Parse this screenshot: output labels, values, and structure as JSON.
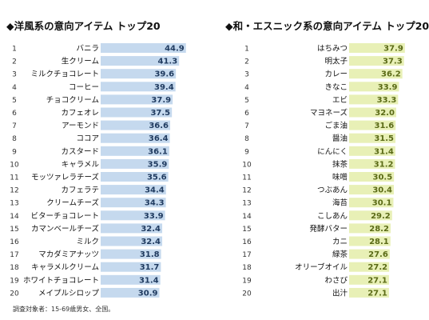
{
  "footnote": "調査対象者：15-69歳男女、全国。",
  "chart_data": [
    {
      "type": "bar",
      "orientation": "horizontal",
      "title": "◆洋風系の意向アイテム トップ20",
      "ranks": [
        "1",
        "2",
        "3",
        "4",
        "5",
        "6",
        "7",
        "8",
        "9",
        "10",
        "11",
        "12",
        "13",
        "14",
        "15",
        "16",
        "17",
        "18",
        "19",
        "20"
      ],
      "categories": [
        "バニラ",
        "生クリーム",
        "ミルクチョコレート",
        "コーヒー",
        "チョコクリーム",
        "カフェオレ",
        "アーモンド",
        "ココア",
        "カスタード",
        "キャラメル",
        "モッツァレラチーズ",
        "カフェラテ",
        "クリームチーズ",
        "ビターチョコレート",
        "カマンベールチーズ",
        "ミルク",
        "マカダミアナッツ",
        "キャラメルクリーム",
        "ホワイトチョコレート",
        "メイプルシロップ"
      ],
      "values": [
        "44.9",
        "41.3",
        "39.6",
        "39.4",
        "37.9",
        "37.5",
        "36.6",
        "36.4",
        "36.1",
        "35.9",
        "35.6",
        "34.4",
        "34.3",
        "33.9",
        "32.4",
        "32.4",
        "31.8",
        "31.7",
        "31.4",
        "30.9"
      ],
      "xlim": [
        0,
        45
      ],
      "bar_color": "#c5d9ee",
      "value_color": "#1f3a5f",
      "grid": false
    },
    {
      "type": "bar",
      "orientation": "horizontal",
      "title": "◆和・エスニック系の意向アイテム トップ20",
      "ranks": [
        "1",
        "2",
        "3",
        "4",
        "5",
        "6",
        "7",
        "8",
        "9",
        "10",
        "11",
        "12",
        "13",
        "14",
        "15",
        "16",
        "17",
        "18",
        "19",
        "20"
      ],
      "categories": [
        "はちみつ",
        "明太子",
        "カレー",
        "きなこ",
        "エビ",
        "マヨネーズ",
        "ごま油",
        "醤油",
        "にんにく",
        "抹茶",
        "味噌",
        "つぶあん",
        "海苔",
        "こしあん",
        "発酵バター",
        "カニ",
        "緑茶",
        "オリーブオイル",
        "わさび",
        "出汁"
      ],
      "values": [
        "37.9",
        "37.3",
        "36.2",
        "33.9",
        "33.3",
        "32.0",
        "31.6",
        "31.5",
        "31.4",
        "31.2",
        "30.5",
        "30.4",
        "30.1",
        "29.2",
        "28.2",
        "28.1",
        "27.6",
        "27.2",
        "27.1",
        "27.1"
      ],
      "xlim": [
        0,
        38
      ],
      "bar_color": "#e8f0b6",
      "value_color": "#5a6a16",
      "grid": false
    }
  ]
}
